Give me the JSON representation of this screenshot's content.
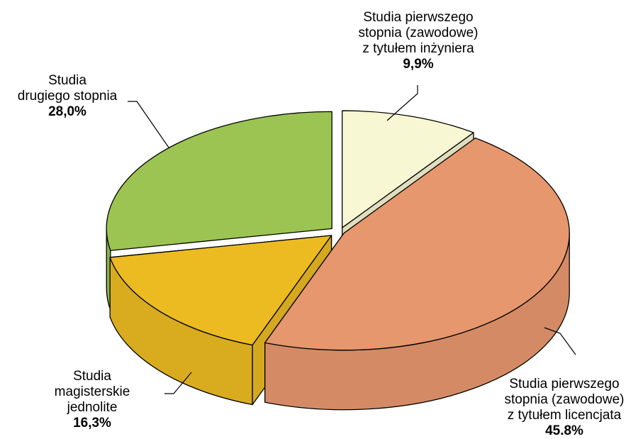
{
  "chart_data": {
    "type": "pie",
    "style": "3d-exploded",
    "slices": [
      {
        "lines": [
          "Studia pierwszego",
          "stopnia (zawodowe)",
          "z tytułem inżyniera"
        ],
        "pct": "9,9%",
        "value": 9.9,
        "color": "#F8F7D3"
      },
      {
        "lines": [
          "Studia pierwszego",
          "stopnia (zawodowe)",
          "z tytułem licencjata"
        ],
        "pct": "45.8%",
        "value": 45.8,
        "color": "#E6976E"
      },
      {
        "lines": [
          "Studia",
          "magisterskie",
          "jednolite"
        ],
        "pct": "16,3%",
        "value": 16.3,
        "color": "#ECBB22"
      },
      {
        "lines": [
          "Studia",
          "drugiego stopnia"
        ],
        "pct": "28,0%",
        "value": 28.0,
        "color": "#9BC452"
      }
    ]
  }
}
